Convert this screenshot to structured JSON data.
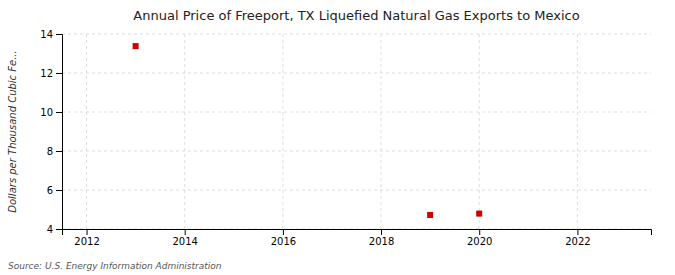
{
  "chart_data": {
    "type": "scatter",
    "title": "Annual Price of Freeport, TX Liquefied Natural Gas Exports to Mexico",
    "ylabel": "Dollars per Thousand Cubic Fe...",
    "annotations": [
      "Source: U.S. Energy Information Administration"
    ],
    "x": [
      2013,
      2019,
      2020
    ],
    "values": [
      13.38,
      4.72,
      4.79
    ],
    "color": "#cc0000",
    "marker": "square",
    "xlim": [
      2011.5,
      2023.5
    ],
    "ylim": [
      4,
      14
    ],
    "xticks": [
      2012,
      2014,
      2016,
      2018,
      2020,
      2022
    ],
    "yticks": [
      4,
      6,
      8,
      10,
      12,
      14
    ],
    "grid": true
  }
}
